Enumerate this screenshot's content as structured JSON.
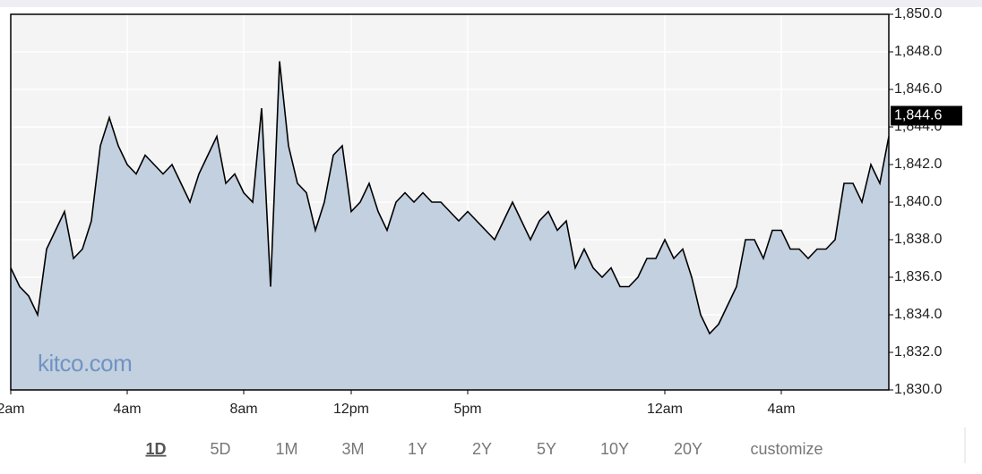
{
  "chart_data": {
    "type": "area",
    "categories": [
      "2am",
      null,
      null,
      null,
      null,
      null,
      null,
      null,
      null,
      null,
      null,
      null,
      null,
      "4am",
      null,
      null,
      null,
      null,
      null,
      null,
      null,
      null,
      null,
      null,
      null,
      null,
      "8am",
      null,
      null,
      null,
      null,
      null,
      null,
      null,
      null,
      null,
      null,
      null,
      "12pm",
      null,
      null,
      null,
      null,
      null,
      null,
      null,
      null,
      null,
      null,
      null,
      null,
      "5pm",
      null,
      null,
      null,
      null,
      null,
      null,
      null,
      null,
      null,
      null,
      null,
      null,
      null,
      null,
      null,
      null,
      null,
      null,
      null,
      null,
      null,
      "12am",
      null,
      null,
      null,
      null,
      null,
      null,
      null,
      null,
      null,
      null,
      null,
      null,
      "4am",
      null,
      null,
      null,
      null,
      null,
      null,
      null,
      null,
      null,
      null,
      null,
      null
    ],
    "values": [
      1836.5,
      1835.5,
      1835,
      1834,
      1837.5,
      1838.5,
      1839.5,
      1837,
      1837.5,
      1839,
      1843,
      1844.5,
      1843,
      1842,
      1841.5,
      1842.5,
      1842,
      1841.5,
      1842,
      1841,
      1840,
      1841.5,
      1842.5,
      1843.5,
      1841,
      1841.5,
      1840.5,
      1840,
      1845,
      1835.5,
      1847.5,
      1843,
      1841,
      1840.5,
      1838.5,
      1840,
      1842.5,
      1843,
      1839.5,
      1840,
      1841,
      1839.5,
      1838.5,
      1840,
      1840.5,
      1840,
      1840.5,
      1840,
      1840,
      1839.5,
      1839,
      1839.5,
      1839,
      1838.5,
      1838,
      1839,
      1840,
      1839,
      1838,
      1839,
      1839.5,
      1838.5,
      1839,
      1836.5,
      1837.5,
      1836.5,
      1836,
      1836.5,
      1835.5,
      1835.5,
      1836,
      1837,
      1837,
      1838,
      1837,
      1837.5,
      1836,
      1834,
      1833,
      1833.5,
      1834.5,
      1835.5,
      1838,
      1838,
      1837,
      1838.5,
      1838.5,
      1837.5,
      1837.5,
      1837,
      1837.5,
      1837.5,
      1838,
      1841,
      1841,
      1840,
      1842,
      1841,
      1843.5
    ],
    "color": "#c3d0df",
    "line_color": "#000000",
    "ylim": [
      1830,
      1850
    ],
    "yticks": [
      {
        "value": 1830,
        "label": "1,830.0"
      },
      {
        "value": 1832,
        "label": "1,832.0"
      },
      {
        "value": 1834,
        "label": "1,834.0"
      },
      {
        "value": 1836,
        "label": "1,836.0"
      },
      {
        "value": 1838,
        "label": "1,838.0"
      },
      {
        "value": 1840,
        "label": "1,840.0"
      },
      {
        "value": 1842,
        "label": "1,842.0"
      },
      {
        "value": 1844,
        "label": "1,844.0"
      },
      {
        "value": 1846,
        "label": "1,846.0"
      },
      {
        "value": 1848,
        "label": "1,848.0"
      },
      {
        "value": 1850,
        "label": "1,850.0"
      }
    ],
    "current_price": {
      "value": 1844.6,
      "label": "1,844.6"
    },
    "watermark": "kitco.com",
    "grid": true
  },
  "ranges": [
    "1D",
    "5D",
    "1M",
    "3M",
    "1Y",
    "2Y",
    "5Y",
    "10Y",
    "20Y",
    "customize"
  ],
  "selected_range": 0
}
